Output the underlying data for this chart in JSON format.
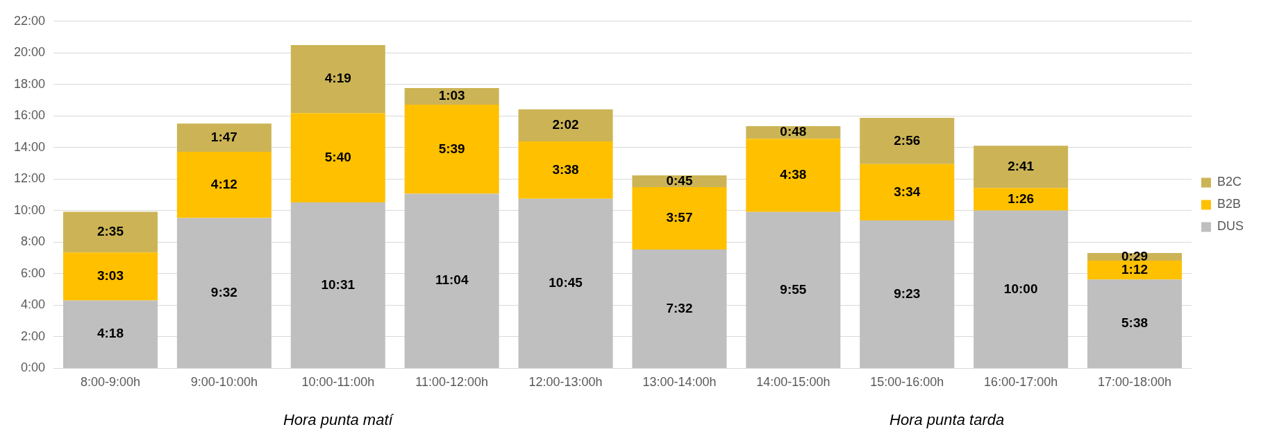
{
  "chart_data": {
    "type": "bar",
    "stacked": true,
    "categories": [
      "8:00-9:00h",
      "9:00-10:00h",
      "10:00-11:00h",
      "11:00-12:00h",
      "12:00-13:00h",
      "13:00-14:00h",
      "14:00-15:00h",
      "15:00-16:00h",
      "16:00-17:00h",
      "17:00-18:00h"
    ],
    "series": [
      {
        "name": "DUS",
        "color": "#bfbfbf",
        "values": [
          4.3,
          9.533,
          10.517,
          11.067,
          10.75,
          7.533,
          9.917,
          9.383,
          10,
          5.633
        ],
        "value_labels": [
          "4:18",
          "9:32",
          "10:31",
          "11:04",
          "10:45",
          "7:32",
          "9:55",
          "9:23",
          "10:00",
          "5:38"
        ]
      },
      {
        "name": "B2B",
        "color": "#ffc000",
        "values": [
          3.05,
          4.2,
          5.667,
          5.65,
          3.633,
          3.95,
          4.633,
          3.567,
          1.433,
          1.2
        ],
        "value_labels": [
          "3:03",
          "4:12",
          "5:40",
          "5:39",
          "3:38",
          "3:57",
          "4:38",
          "3:34",
          "1:26",
          "1:12"
        ]
      },
      {
        "name": "B2C",
        "color": "#ccb456",
        "values": [
          2.583,
          1.783,
          4.317,
          1.05,
          2.033,
          0.75,
          0.8,
          2.933,
          2.683,
          0.483
        ],
        "value_labels": [
          "2:35",
          "1:47",
          "4:19",
          "1:03",
          "2:02",
          "0:45",
          "0:48",
          "2:56",
          "2:41",
          "0:29"
        ]
      }
    ],
    "ylim": [
      0,
      22
    ],
    "yticks": [
      {
        "value": 0,
        "label": "0:00"
      },
      {
        "value": 2,
        "label": "2:00"
      },
      {
        "value": 4,
        "label": "4:00"
      },
      {
        "value": 6,
        "label": "6:00"
      },
      {
        "value": 8,
        "label": "8:00"
      },
      {
        "value": 10,
        "label": "10:00"
      },
      {
        "value": 12,
        "label": "12:00"
      },
      {
        "value": 14,
        "label": "14:00"
      },
      {
        "value": 16,
        "label": "16:00"
      },
      {
        "value": 18,
        "label": "18:00"
      },
      {
        "value": 20,
        "label": "20:00"
      },
      {
        "value": 22,
        "label": "22:00"
      }
    ],
    "grid": "y",
    "legend": "right",
    "annotations": [
      "Hora punta matí",
      "Hora punta tarda"
    ]
  }
}
